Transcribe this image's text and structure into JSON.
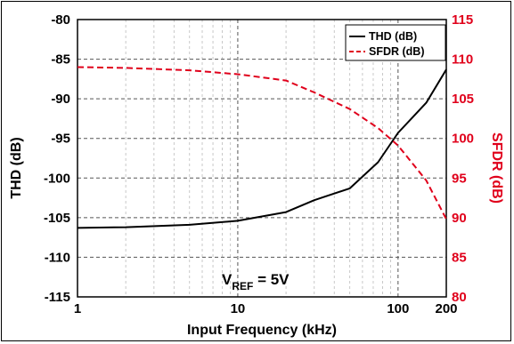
{
  "chart_data": {
    "type": "line",
    "x_scale": "log",
    "xlim": [
      1,
      200
    ],
    "xticks": [
      1,
      10,
      100,
      200
    ],
    "xtick_labels": [
      "1",
      "10",
      "100",
      "200"
    ],
    "xlabel": "Input Frequency (kHz)",
    "ylabel_left": "THD (dB)",
    "ylabel_right": "SFDR (dB)",
    "ylim_left": [
      -115,
      -80
    ],
    "yticks_left": [
      -115,
      -110,
      -105,
      -100,
      -95,
      -90,
      -85,
      -80
    ],
    "ylim_right": [
      80,
      115
    ],
    "yticks_right": [
      80,
      85,
      90,
      95,
      100,
      105,
      110,
      115
    ],
    "grid": true,
    "legend_position": "top-right",
    "annotation": {
      "main": "V",
      "sub": "REF",
      "suffix": " = 5V"
    },
    "series": [
      {
        "name": "THD (dB)",
        "axis": "left",
        "color": "#000000",
        "style": "solid",
        "x": [
          1,
          2,
          5,
          10,
          20,
          30,
          50,
          75,
          100,
          150,
          200
        ],
        "y": [
          -106.3,
          -106.2,
          -105.9,
          -105.4,
          -104.3,
          -102.8,
          -101.3,
          -98.0,
          -94.3,
          -90.5,
          -86.3
        ]
      },
      {
        "name": "SFDR (dB)",
        "axis": "right",
        "color": "#e0001b",
        "style": "dashed",
        "x": [
          1,
          2,
          5,
          10,
          20,
          30,
          50,
          75,
          100,
          150,
          200
        ],
        "y": [
          109.0,
          108.9,
          108.6,
          108.1,
          107.3,
          105.8,
          103.7,
          101.3,
          99.1,
          94.7,
          89.8
        ]
      }
    ]
  },
  "colors": {
    "thd": "#000000",
    "sfdr": "#e0001b",
    "grid": "#555555",
    "minor_grid": "#bbbbbb"
  }
}
